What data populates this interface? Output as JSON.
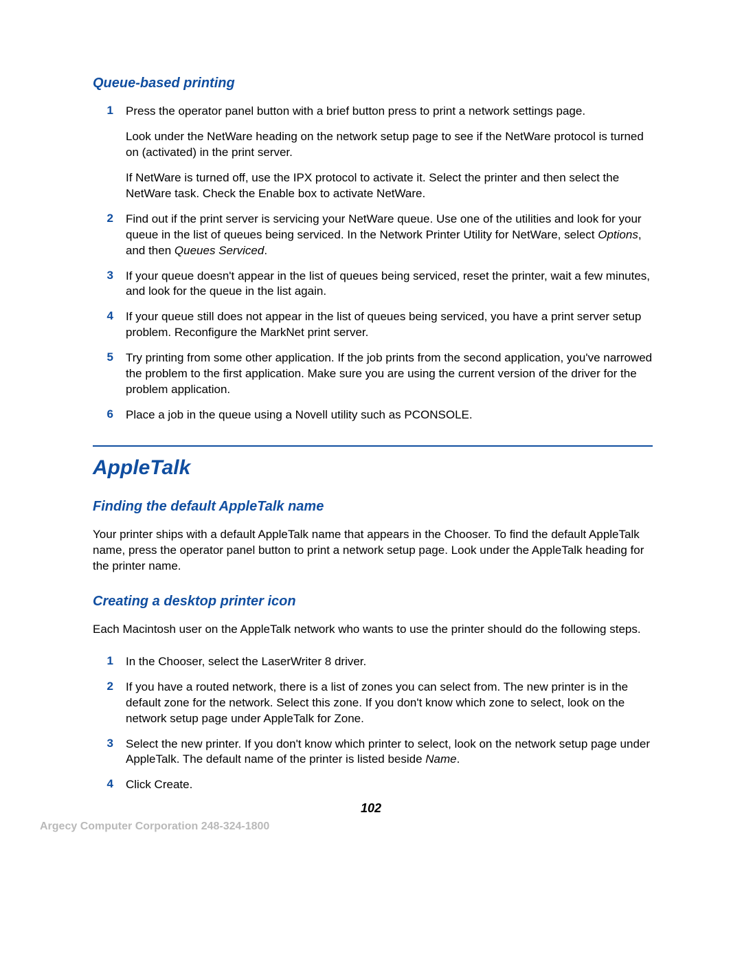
{
  "colors": {
    "heading_blue": "#104ea0",
    "body_text": "#000000",
    "footer_gray": "#b9b9b9",
    "hr_blue": "#104ea0",
    "background": "#ffffff"
  },
  "typography": {
    "section_heading_size": 20,
    "main_heading_size": 30,
    "body_size": 17,
    "page_number_size": 18,
    "footer_size": 16
  },
  "queue_section": {
    "heading": "Queue-based printing",
    "items": [
      {
        "num": "1",
        "paras": [
          "Press the operator panel button with a brief button press to print a network settings page.",
          "Look under the NetWare heading on the network setup page to see if the NetWare protocol is turned on (activated) in the print server.",
          "If NetWare is turned off, use the IPX protocol to activate it. Select the printer and then select the NetWare task. Check the Enable box to activate NetWare."
        ]
      },
      {
        "num": "2",
        "html": "Find out if the print server is servicing your NetWare queue. Use one of the utilities and look for your queue in the list of queues being serviced. In the Network Printer Utility for NetWare, select <span class=\"italic\">Options</span>, and then <span class=\"italic\">Queues Serviced</span>."
      },
      {
        "num": "3",
        "text": "If your queue doesn't appear in the list of queues being serviced, reset the printer, wait a few minutes, and look for the queue in the list again."
      },
      {
        "num": "4",
        "text": "If your queue still does not appear in the list of queues being serviced, you have a print server setup problem. Reconfigure the MarkNet print server."
      },
      {
        "num": "5",
        "text": "Try printing from some other application. If the job prints from the second application, you've narrowed the problem to the first application. Make sure you are using the current version of the driver for the problem application."
      },
      {
        "num": "6",
        "text": "Place a job in the queue using a Novell utility such as PCONSOLE."
      }
    ]
  },
  "appletalk_section": {
    "heading": "AppleTalk",
    "finding": {
      "heading": "Finding the default AppleTalk name",
      "body": "Your printer ships with a default AppleTalk name that appears in the Chooser. To find the default AppleTalk name, press the operator panel button to print a network setup page. Look under the AppleTalk heading for the printer name."
    },
    "creating": {
      "heading": "Creating a desktop printer icon",
      "intro": "Each Macintosh user on the AppleTalk network who wants to use the printer should do the following steps.",
      "items": [
        {
          "num": "1",
          "text": "In the Chooser, select the LaserWriter 8 driver."
        },
        {
          "num": "2",
          "text": "If you have a routed network, there is a list of zones you can select from. The new printer is in the default zone for the network. Select this zone. If you don't know which zone to select, look on the network setup page under AppleTalk for Zone."
        },
        {
          "num": "3",
          "html": "Select the new printer. If you don't know which printer to select, look on the network setup page under AppleTalk. The default name of the printer is listed beside <span class=\"italic\">Name</span>."
        },
        {
          "num": "4",
          "text": "Click Create."
        }
      ]
    }
  },
  "page_number": "102",
  "footer": "Argecy Computer Corporation 248-324-1800"
}
